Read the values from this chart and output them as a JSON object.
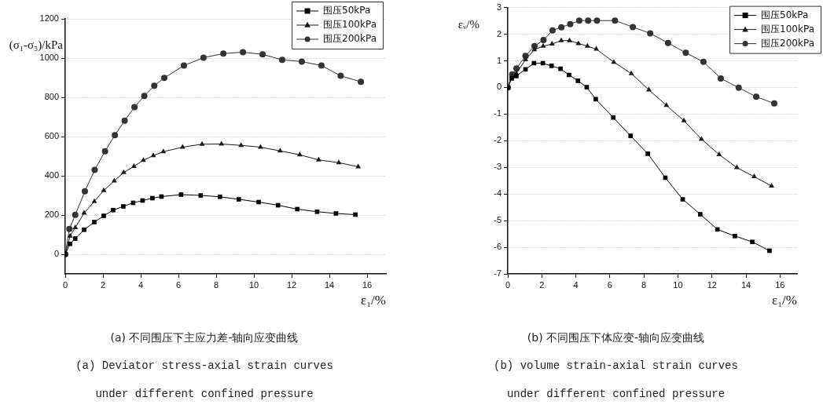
{
  "chart_data": [
    {
      "type": "line",
      "xlabel": "ε₁/%",
      "ylabel": "(σ₁-σ₃)/kPa",
      "xlim": [
        0,
        17
      ],
      "xticks": [
        0,
        2,
        4,
        6,
        8,
        10,
        12,
        14,
        16
      ],
      "ylim": [
        -100,
        1200
      ],
      "yticks": [
        0,
        200,
        400,
        600,
        800,
        1000,
        1200
      ],
      "grid": "y",
      "legend": "top right",
      "line_style": "solid",
      "annotations": [
        "(a) 不同围压下主应力差-轴向应变曲线",
        "(a) Deviator stress-axial strain curves",
        "under different confined pressure"
      ],
      "series": [
        {
          "name": "围压50kPa",
          "color": "#000000",
          "marker": "square",
          "x": [
            0,
            0.25,
            0.53,
            1.0,
            1.54,
            2.04,
            2.54,
            3.08,
            3.6,
            4.1,
            4.62,
            5.1,
            6.14,
            7.18,
            8.2,
            9.2,
            10.25,
            11.28,
            12.3,
            13.35,
            14.35,
            15.38
          ],
          "values": [
            0,
            53,
            80,
            125,
            164,
            196,
            225,
            244,
            262,
            274,
            286,
            294,
            304,
            300,
            293,
            280,
            266,
            250,
            230,
            217,
            208,
            202
          ]
        },
        {
          "name": "围压100kPa",
          "color": "#1a1a1a",
          "marker": "triangle",
          "x": [
            0,
            0.26,
            0.53,
            1.0,
            1.54,
            2.04,
            2.6,
            3.1,
            3.64,
            4.14,
            4.67,
            5.2,
            6.22,
            7.25,
            8.28,
            9.32,
            10.35,
            11.39,
            12.43,
            13.43,
            14.5,
            15.53
          ],
          "values": [
            0,
            93,
            136,
            210,
            269,
            325,
            374,
            417,
            448,
            479,
            503,
            523,
            546,
            561,
            562,
            555,
            546,
            527,
            507,
            481,
            467,
            446
          ]
        },
        {
          "name": "围压200kPa",
          "color": "#333333",
          "marker": "circle",
          "x": [
            0,
            0.22,
            0.53,
            1.04,
            1.56,
            2.11,
            2.63,
            3.15,
            3.67,
            4.19,
            4.72,
            5.25,
            6.29,
            7.33,
            8.38,
            9.42,
            10.46,
            11.5,
            12.54,
            13.58,
            14.6,
            15.67
          ],
          "values": [
            0,
            129,
            201,
            321,
            430,
            525,
            607,
            681,
            750,
            807,
            859,
            899,
            962,
            1002,
            1023,
            1030,
            1019,
            991,
            982,
            962,
            910,
            879
          ]
        }
      ]
    },
    {
      "type": "line",
      "xlabel": "ε₁/%",
      "ylabel": "εᵥ/%",
      "xlim": [
        0,
        17
      ],
      "xticks": [
        0,
        2,
        4,
        6,
        8,
        10,
        12,
        14,
        16
      ],
      "ylim": [
        -7,
        3
      ],
      "yticks": [
        -7,
        -6,
        -5,
        -4,
        -3,
        -2,
        -1,
        0,
        1,
        2,
        3
      ],
      "grid": "y",
      "legend": "top right",
      "line_style": "solid",
      "annotations": [
        "(b) 不同围压下体应变-轴向应变曲线",
        "(b) volume strain-axial strain curves",
        "under different confined pressure"
      ],
      "series": [
        {
          "name": "围压50kPa",
          "color": "#000000",
          "marker": "square",
          "x": [
            0,
            0.23,
            0.5,
            1.04,
            1.54,
            2.06,
            2.57,
            3.1,
            3.6,
            4.12,
            4.64,
            5.17,
            6.2,
            7.22,
            8.23,
            9.26,
            10.28,
            11.31,
            12.32,
            13.35,
            14.37,
            15.38
          ],
          "values": [
            0,
            0.34,
            0.43,
            0.68,
            0.91,
            0.91,
            0.81,
            0.7,
            0.47,
            0.25,
            0.01,
            -0.44,
            -1.13,
            -1.82,
            -2.49,
            -3.39,
            -4.2,
            -4.76,
            -5.33,
            -5.58,
            -5.8,
            -6.13
          ]
        },
        {
          "name": "围压100kPa",
          "color": "#1a1a1a",
          "marker": "triangle",
          "x": [
            0,
            0.26,
            0.5,
            1.04,
            1.56,
            2.08,
            2.6,
            3.14,
            3.63,
            4.15,
            4.68,
            5.2,
            6.23,
            7.26,
            8.29,
            9.32,
            10.35,
            11.38,
            12.42,
            13.46,
            14.48,
            15.5
          ],
          "values": [
            0,
            0.42,
            0.53,
            1.04,
            1.42,
            1.55,
            1.63,
            1.76,
            1.76,
            1.65,
            1.55,
            1.44,
            0.95,
            0.52,
            -0.09,
            -0.67,
            -1.25,
            -1.94,
            -2.52,
            -3.01,
            -3.35,
            -3.7
          ]
        },
        {
          "name": "围压200kPa",
          "color": "#333333",
          "marker": "circle",
          "x": [
            0,
            0.26,
            0.51,
            1.04,
            1.57,
            2.1,
            2.63,
            3.15,
            3.67,
            4.2,
            4.72,
            5.24,
            6.3,
            7.35,
            8.37,
            9.42,
            10.46,
            11.5,
            12.52,
            13.57,
            14.6,
            15.66
          ],
          "values": [
            0,
            0.49,
            0.71,
            1.18,
            1.55,
            1.78,
            2.14,
            2.26,
            2.38,
            2.51,
            2.51,
            2.51,
            2.51,
            2.27,
            2.03,
            1.67,
            1.3,
            0.96,
            0.34,
            -0.01,
            -0.35,
            -0.6
          ]
        }
      ]
    }
  ]
}
